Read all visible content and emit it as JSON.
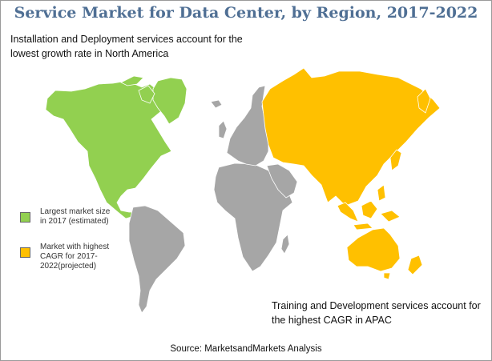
{
  "title": "Service Market for Data Center, by Region, 2017-2022",
  "annotations": {
    "north_america": "Installation and Deployment services account for the lowest growth rate in North America",
    "apac": "Training and Development services account for the highest CAGR in APAC"
  },
  "legend": [
    {
      "label": "Largest market size in 2017 (estimated)",
      "color": "#92d050",
      "regions": [
        "North America"
      ]
    },
    {
      "label": "Market with highest CAGR for 2017-2022(projected)",
      "color": "#ffc000",
      "regions": [
        "APAC"
      ]
    }
  ],
  "other_regions_color": "#a6a6a6",
  "source": "Source: MarketsandMarkets Analysis"
}
